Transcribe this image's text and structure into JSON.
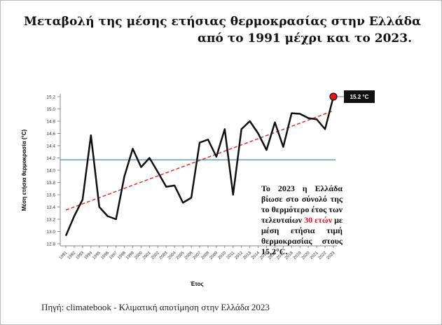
{
  "chart_data": {
    "type": "line",
    "title_line1": "Μεταβολή της μέσης ετήσιας θερμοκρασίας στην Ελλάδα",
    "title_line2": "από το 1991 μέχρι και το 2023.",
    "y_label": "Μέση ετήσια θερμοκρασία (°C)",
    "x_label": "Έτος",
    "categories": [
      "1991",
      "1992",
      "1993",
      "1994",
      "1995",
      "1996",
      "1997",
      "1998",
      "1999",
      "2000",
      "2001",
      "2002",
      "2003",
      "2004",
      "2005",
      "2006",
      "2007",
      "2008",
      "2009",
      "2010",
      "2011",
      "2012",
      "2013",
      "2014",
      "2015",
      "2016",
      "2017",
      "2018",
      "2019",
      "2020",
      "2021",
      "2022",
      "2023"
    ],
    "series": [
      {
        "color": "#111111",
        "values": [
          12.93,
          13.25,
          13.52,
          14.57,
          13.4,
          13.25,
          13.2,
          13.9,
          14.35,
          14.05,
          14.2,
          13.97,
          13.73,
          13.75,
          13.47,
          13.55,
          14.45,
          14.5,
          14.22,
          14.67,
          13.6,
          14.67,
          14.8,
          14.6,
          14.33,
          14.78,
          14.38,
          14.93,
          14.92,
          14.85,
          14.83,
          14.67,
          15.2
        ]
      }
    ],
    "mean_line": {
      "value": 14.17,
      "color": "#4a86b4"
    },
    "trend_line": {
      "values": [
        13.35,
        14.97
      ],
      "color": "#e0302a"
    },
    "highlight_color": "#e8141c",
    "callout": "15.2 °C",
    "ylim": [
      12.8,
      15.2
    ],
    "yticks": [
      12.8,
      {
        "value": 13,
        "label": "13.0"
      },
      13.2,
      13.4,
      13.6,
      13.8,
      {
        "value": 14,
        "label": "14.0"
      },
      14.2,
      14.4,
      14.6,
      14.8,
      {
        "value": 15,
        "label": "15.0"
      },
      15.2
    ],
    "annotation_parts": [
      "Το 2023 η Ελλάδα βίωσε στο σύνολό της το θερμότερο έτος των τελευταίων ",
      "30 ετών",
      " με μέση ετήσια τιμή θερμοκρασίας στους 15,2°C."
    ],
    "annotation_emphasis_color": "#e8141c",
    "source": "Πηγή: climatebook - Κλιματική αποτίμηση στην Ελλάδα 2023"
  }
}
